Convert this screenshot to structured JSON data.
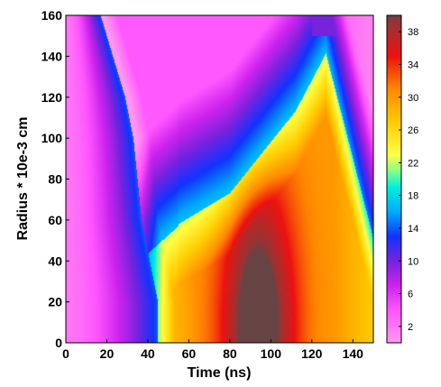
{
  "chart_data": {
    "type": "heatmap",
    "xlabel": "Time  (ns)",
    "ylabel": "Radius * 10e-3 cm",
    "xlim": [
      0,
      150
    ],
    "ylim": [
      0,
      160
    ],
    "x_ticks": [
      0,
      20,
      40,
      60,
      80,
      100,
      120,
      140
    ],
    "y_ticks": [
      0,
      20,
      40,
      60,
      80,
      100,
      120,
      140,
      160
    ],
    "colorbar": {
      "range": [
        0,
        40
      ],
      "ticks": [
        2,
        6,
        10,
        14,
        18,
        22,
        26,
        30,
        34,
        38
      ],
      "colormap": [
        {
          "v": 0,
          "color": "#ff99ee"
        },
        {
          "v": 4,
          "color": "#ff55ff"
        },
        {
          "v": 7,
          "color": "#cc22ee"
        },
        {
          "v": 10,
          "color": "#7722dd"
        },
        {
          "v": 13,
          "color": "#1133ff"
        },
        {
          "v": 16,
          "color": "#00aaff"
        },
        {
          "v": 19,
          "color": "#00eedd"
        },
        {
          "v": 21,
          "color": "#88ff88"
        },
        {
          "v": 23,
          "color": "#ffff44"
        },
        {
          "v": 27,
          "color": "#ffcc00"
        },
        {
          "v": 31,
          "color": "#ff8800"
        },
        {
          "v": 35,
          "color": "#ee1111"
        },
        {
          "v": 39,
          "color": "#993333"
        },
        {
          "v": 40,
          "color": "#664444"
        }
      ]
    },
    "front_boundary": [
      {
        "r": 0,
        "t": 45
      },
      {
        "r": 20,
        "t": 45
      },
      {
        "r": 40,
        "t": 41
      },
      {
        "r": 60,
        "t": 37
      },
      {
        "r": 80,
        "t": 35
      },
      {
        "r": 100,
        "t": 33
      },
      {
        "r": 120,
        "t": 29
      },
      {
        "r": 140,
        "t": 23
      },
      {
        "r": 160,
        "t": 17
      }
    ],
    "hot_core": {
      "t": 94,
      "r": 8,
      "peak_value": 40
    }
  }
}
